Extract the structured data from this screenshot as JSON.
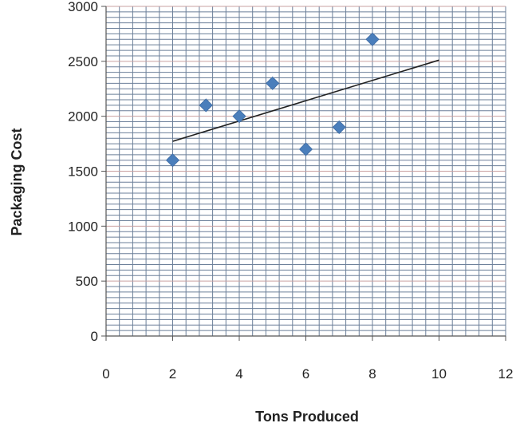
{
  "chart_data": {
    "type": "scatter",
    "title": "",
    "xlabel": "Tons Produced",
    "ylabel": "Packaging  Cost",
    "xlim": [
      0,
      12
    ],
    "ylim": [
      0,
      3000
    ],
    "x_ticks": [
      0,
      2,
      4,
      6,
      8,
      10,
      12
    ],
    "y_ticks": [
      0,
      500,
      1000,
      1500,
      2000,
      2500,
      3000
    ],
    "x_tick_labels": [
      "0",
      "2",
      "4",
      "6",
      "8",
      "10",
      "12"
    ],
    "y_tick_labels": [
      "0",
      "500",
      "1000",
      "1500",
      "2000",
      "2500",
      "3000"
    ],
    "grid": true,
    "legend": "none",
    "series": [
      {
        "x": [
          2,
          3,
          4,
          5,
          6,
          7,
          8
        ],
        "y": [
          1600,
          2100,
          2000,
          2300,
          1700,
          1900,
          2700
        ],
        "marker": "diamond",
        "color": "#4a7ebb"
      }
    ],
    "trendline": {
      "type": "linear",
      "x": [
        2,
        10
      ],
      "y": [
        1772,
        2511
      ],
      "color": "#222222"
    },
    "colors": {
      "minor_grid": "#6b7f99",
      "major_grid": "#c9a0a0",
      "marker": "#4a7ebb"
    }
  }
}
